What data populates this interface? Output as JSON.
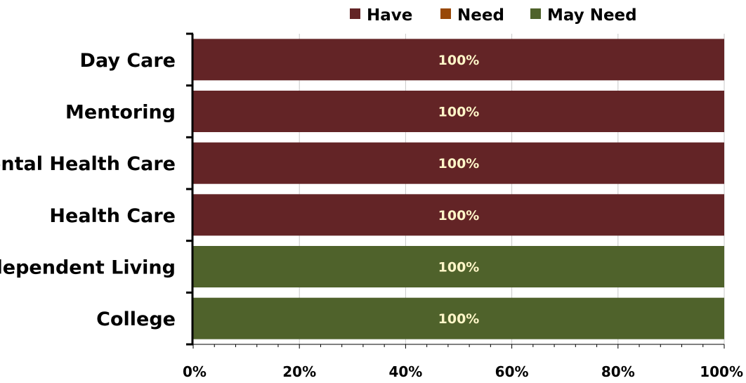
{
  "chart_data": {
    "type": "bar",
    "orientation": "horizontal",
    "stacked": true,
    "categories": [
      "Day Care",
      "Mentoring",
      "Mental Health Care",
      "Health Care",
      "Independent Living",
      "College"
    ],
    "series": [
      {
        "name": "Have",
        "color": "#632426",
        "values": [
          100,
          100,
          100,
          100,
          0,
          0
        ]
      },
      {
        "name": "Need",
        "color": "#984807",
        "values": [
          0,
          0,
          0,
          0,
          0,
          0
        ]
      },
      {
        "name": "May Need",
        "color": "#4f622b",
        "values": [
          0,
          0,
          0,
          0,
          100,
          100
        ]
      }
    ],
    "data_labels": [
      "100%",
      "100%",
      "100%",
      "100%",
      "100%",
      "100%"
    ],
    "xaxis": {
      "ticks": [
        0,
        20,
        40,
        60,
        80,
        100
      ],
      "tick_labels": [
        "0%",
        "20%",
        "40%",
        "60%",
        "80%",
        "100%"
      ],
      "range": [
        0,
        100
      ]
    },
    "grid": "vertical",
    "legend": "top"
  }
}
